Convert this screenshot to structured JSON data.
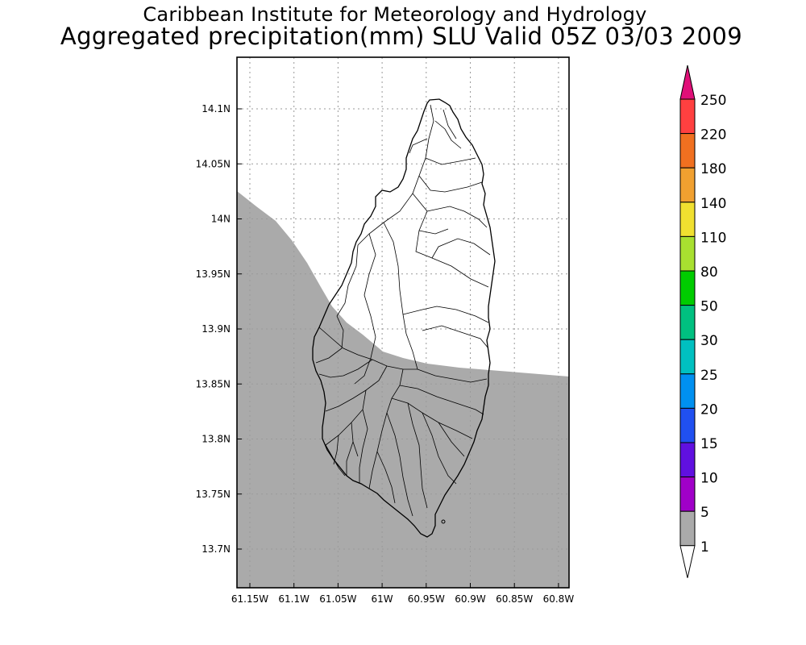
{
  "header": {
    "line1": "Caribbean Institute for Meteorology and Hydrology",
    "line2": "Aggregated precipitation(mm) SLU Valid 05Z 03/03 2009"
  },
  "map": {
    "lat_ticks": [
      "14.1N",
      "14.05N",
      "14N",
      "13.95N",
      "13.9N",
      "13.85N",
      "13.8N",
      "13.75N",
      "13.7N"
    ],
    "lon_ticks": [
      "61.15W",
      "61.1W",
      "61.05W",
      "61W",
      "60.95W",
      "60.9W",
      "60.85W",
      "60.8W"
    ],
    "shaded_color": "#aaaaaa"
  },
  "colorbar": {
    "labels": [
      "250",
      "220",
      "180",
      "140",
      "110",
      "80",
      "50",
      "30",
      "25",
      "20",
      "15",
      "10",
      "5",
      "1"
    ],
    "colors": [
      "#e00f78",
      "#ff4040",
      "#f07020",
      "#f0a030",
      "#f0e030",
      "#a8e030",
      "#00cc00",
      "#00c080",
      "#00c0c0",
      "#0090f0",
      "#2050f0",
      "#6010e0",
      "#a000c8",
      "#aaaaaa",
      "#ffffff"
    ]
  }
}
